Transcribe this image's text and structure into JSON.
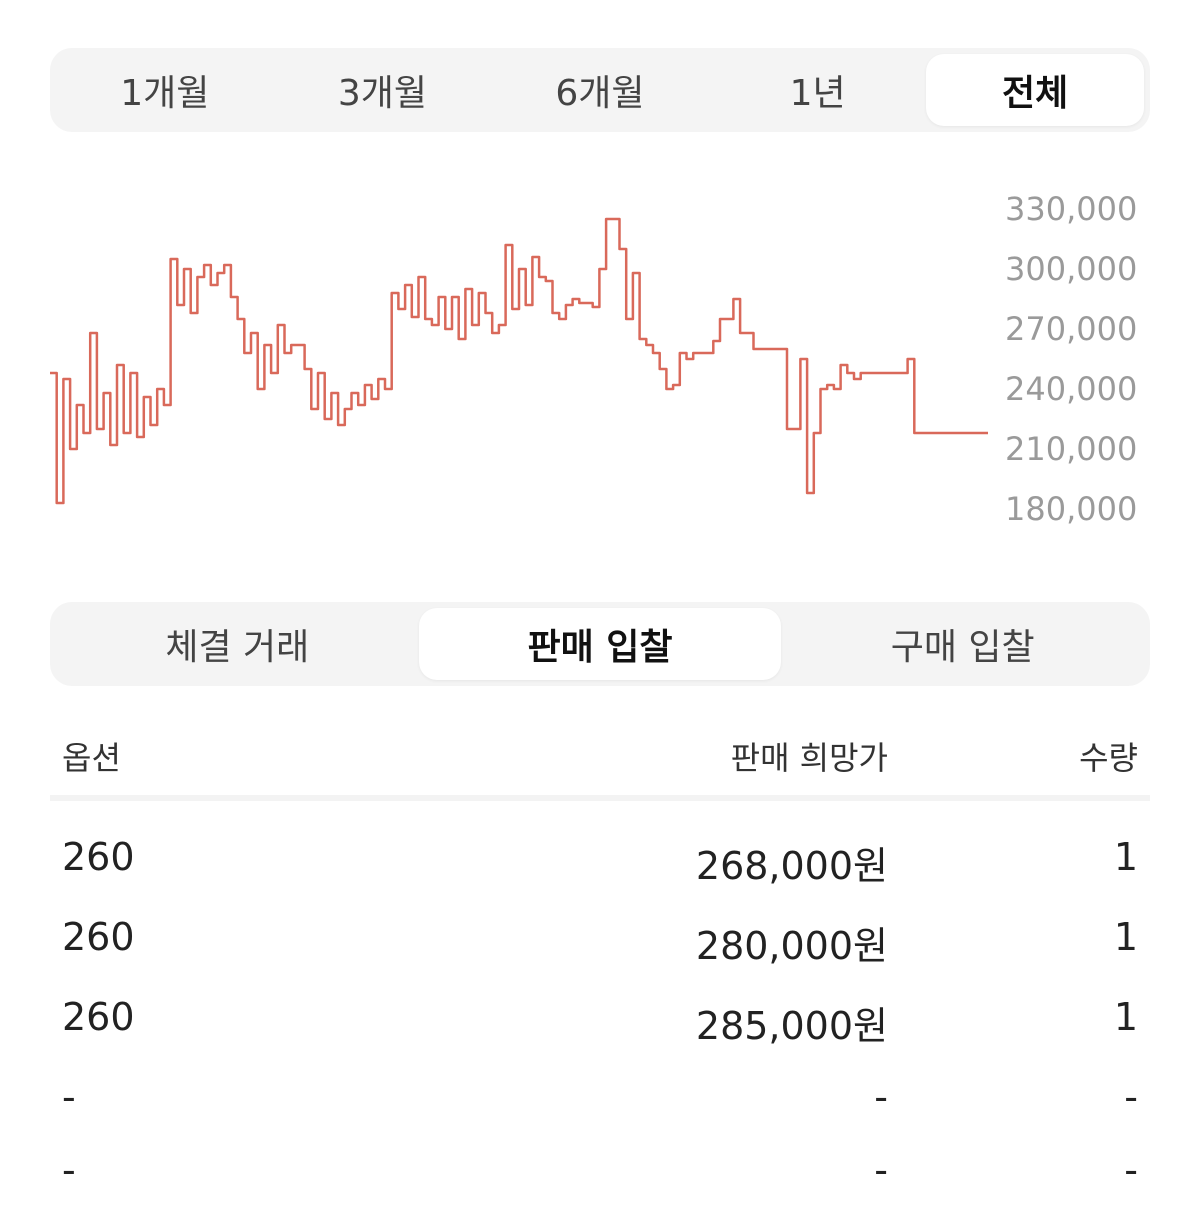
{
  "period_tabs": {
    "items": [
      "1개월",
      "3개월",
      "6개월",
      "1년",
      "전체"
    ],
    "active": 4
  },
  "chart_data": {
    "type": "line",
    "color": "#d9695a",
    "y_ticks": [
      "330,000",
      "300,000",
      "270,000",
      "240,000",
      "210,000",
      "180,000"
    ],
    "ylim": [
      180000,
      330000
    ],
    "series": [
      {
        "values": [
          248000,
          183000,
          245000,
          210000,
          232000,
          218000,
          268000,
          220000,
          238000,
          212000,
          252000,
          218000,
          248000,
          216000,
          236000,
          222000,
          240000,
          232000,
          305000,
          282000,
          300000,
          278000,
          296000,
          302000,
          292000,
          298000,
          302000,
          286000,
          275000,
          258000,
          268000,
          240000,
          262000,
          248000,
          272000,
          258000,
          262000,
          262000,
          250000,
          230000,
          248000,
          225000,
          238000,
          222000,
          230000,
          238000,
          232000,
          242000,
          235000,
          245000,
          240000,
          288000,
          280000,
          292000,
          276000,
          296000,
          275000,
          272000,
          286000,
          270000,
          286000,
          265000,
          290000,
          272000,
          288000,
          278000,
          268000,
          272000,
          312000,
          280000,
          300000,
          282000,
          306000,
          296000,
          294000,
          278000,
          275000,
          282000,
          285000,
          283000,
          283000,
          281000,
          300000,
          325000,
          325000,
          310000,
          275000,
          298000,
          265000,
          262000,
          258000,
          250000,
          240000,
          242000,
          258000,
          255000,
          258000,
          258000,
          258000,
          264000,
          275000,
          275000,
          285000,
          268000,
          268000,
          260000,
          260000,
          260000,
          260000,
          260000,
          220000,
          220000,
          255000,
          188000,
          218000,
          240000,
          242000,
          240000,
          252000,
          248000,
          245000,
          248000,
          248000,
          248000,
          248000,
          248000,
          248000,
          248000,
          255000,
          218000,
          218000,
          218000,
          218000,
          218000,
          218000,
          218000,
          218000,
          218000,
          218000,
          218000,
          218000
        ]
      }
    ]
  },
  "bid_tabs": {
    "items": [
      "체결 거래",
      "판매 입찰",
      "구매 입찰"
    ],
    "active": 1
  },
  "table": {
    "headers": {
      "option": "옵션",
      "price": "판매 희망가",
      "qty": "수량"
    },
    "rows": [
      {
        "option": "260",
        "price": "268,000원",
        "qty": "1"
      },
      {
        "option": "260",
        "price": "280,000원",
        "qty": "1"
      },
      {
        "option": "260",
        "price": "285,000원",
        "qty": "1"
      },
      {
        "option": "-",
        "price": "-",
        "qty": "-"
      },
      {
        "option": "-",
        "price": "-",
        "qty": "-"
      }
    ]
  }
}
